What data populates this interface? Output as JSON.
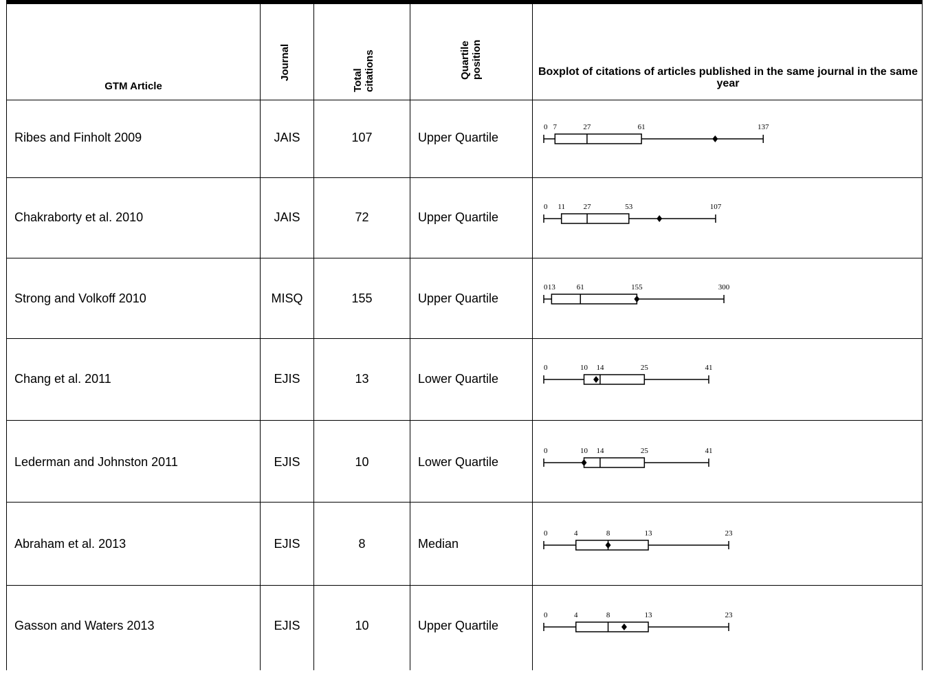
{
  "table": {
    "headers": {
      "article": "GTM Article",
      "journal": "Journal",
      "citations_line1": "Total",
      "citations_line2": "citations",
      "quartile_line1": "Quartile",
      "quartile_line2": "position",
      "boxplot": "Boxplot of citations of articles published in the same journal in the same year"
    },
    "rows": [
      {
        "article": "Ribes and Finholt 2009",
        "journal": "JAIS",
        "citations": "107",
        "quartile": "Upper Quartile"
      },
      {
        "article": "Chakraborty et al. 2010",
        "journal": "JAIS",
        "citations": "72",
        "quartile": "Upper Quartile"
      },
      {
        "article": "Strong and Volkoff 2010",
        "journal": "MISQ",
        "citations": "155",
        "quartile": "Upper Quartile"
      },
      {
        "article": "Chang et al. 2011",
        "journal": "EJIS",
        "citations": "13",
        "quartile": "Lower Quartile"
      },
      {
        "article": "Lederman and Johnston 2011",
        "journal": "EJIS",
        "citations": "10",
        "quartile": "Lower Quartile"
      },
      {
        "article": "Abraham et al. 2013",
        "journal": "EJIS",
        "citations": "8",
        "quartile": "Median"
      },
      {
        "article": "Gasson and Waters 2013",
        "journal": "EJIS",
        "citations": "10",
        "quartile": "Upper Quartile"
      }
    ]
  },
  "chart_data": [
    {
      "type": "boxplot",
      "article": "Ribes and Finholt 2009",
      "min": 0,
      "q1": 7,
      "median": 27,
      "q3": 61,
      "max": 137,
      "point": 107,
      "tick_labels": [
        "0",
        "7",
        "27",
        "61",
        "137"
      ]
    },
    {
      "type": "boxplot",
      "article": "Chakraborty et al. 2010",
      "min": 0,
      "q1": 11,
      "median": 27,
      "q3": 53,
      "max": 107,
      "point": 72,
      "tick_labels": [
        "0",
        "11",
        "27",
        "53",
        "107"
      ]
    },
    {
      "type": "boxplot",
      "article": "Strong and Volkoff 2010",
      "min": 0,
      "q1": 13,
      "median": 61,
      "q3": 155,
      "max": 300,
      "point": 155,
      "tick_labels": [
        "0",
        "13",
        "61",
        "155",
        "300"
      ]
    },
    {
      "type": "boxplot",
      "article": "Chang et al. 2011",
      "min": 0,
      "q1": 10,
      "median": 14,
      "q3": 25,
      "max": 41,
      "point": 13,
      "tick_labels": [
        "0",
        "10",
        "14",
        "25",
        "41"
      ]
    },
    {
      "type": "boxplot",
      "article": "Lederman and Johnston 2011",
      "min": 0,
      "q1": 10,
      "median": 14,
      "q3": 25,
      "max": 41,
      "point": 10,
      "tick_labels": [
        "0",
        "10",
        "14",
        "25",
        "41"
      ]
    },
    {
      "type": "boxplot",
      "article": "Abraham et al. 2013",
      "min": 0,
      "q1": 4,
      "median": 8,
      "q3": 13,
      "max": 23,
      "point": 8,
      "tick_labels": [
        "0",
        "4",
        "8",
        "13",
        "23"
      ]
    },
    {
      "type": "boxplot",
      "article": "Gasson and Waters 2013",
      "min": 0,
      "q1": 4,
      "median": 8,
      "q3": 13,
      "max": 23,
      "point": 10,
      "tick_labels": [
        "0",
        "4",
        "8",
        "13",
        "23"
      ]
    }
  ]
}
